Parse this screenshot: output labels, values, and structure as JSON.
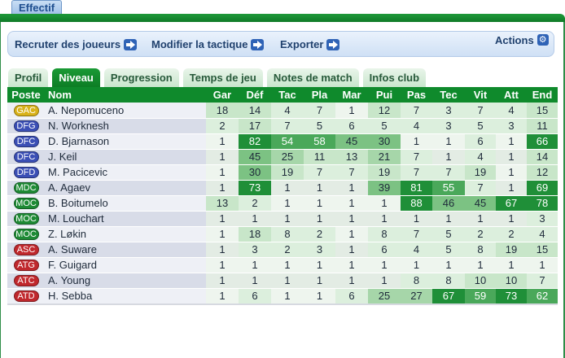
{
  "window_title": "Effectif",
  "action_bar": {
    "recruit_label": "Recruter des joueurs",
    "tactics_label": "Modifier la tactique",
    "export_label": "Exporter",
    "actions_label": "Actions"
  },
  "tabs": [
    {
      "label": "Profil",
      "active": false
    },
    {
      "label": "Niveau",
      "active": true
    },
    {
      "label": "Progression",
      "active": false
    },
    {
      "label": "Temps de jeu",
      "active": false
    },
    {
      "label": "Notes de match",
      "active": false
    },
    {
      "label": "Infos club",
      "active": false
    }
  ],
  "columns": [
    "Poste",
    "Nom",
    "Gar",
    "Déf",
    "Tac",
    "Pla",
    "Mar",
    "Pui",
    "Pas",
    "Tec",
    "Vit",
    "Att",
    "End"
  ],
  "position_colors": {
    "GAC": "#d9b21a",
    "DFG": "#3b4fb5",
    "DFC": "#3b4fb5",
    "DFD": "#3b4fb5",
    "MDC": "#1e8a35",
    "MOC": "#1e8a35",
    "ASC": "#c0282d",
    "ATG": "#c0282d",
    "ATC": "#c0282d",
    "ATD": "#c0282d"
  },
  "players": [
    {
      "pos": "GAC",
      "name": "A. Nepomuceno",
      "stats": [
        18,
        14,
        4,
        7,
        1,
        12,
        7,
        3,
        7,
        4,
        15
      ]
    },
    {
      "pos": "DFG",
      "name": "N. Worknesh",
      "stats": [
        2,
        17,
        7,
        5,
        6,
        5,
        4,
        3,
        5,
        3,
        11
      ]
    },
    {
      "pos": "DFC",
      "name": "D. Bjarnason",
      "stats": [
        1,
        82,
        54,
        58,
        45,
        30,
        1,
        1,
        6,
        1,
        66
      ]
    },
    {
      "pos": "DFC",
      "name": "J. Keil",
      "stats": [
        1,
        45,
        25,
        11,
        13,
        21,
        7,
        1,
        4,
        1,
        14
      ]
    },
    {
      "pos": "DFD",
      "name": "M. Pacicevic",
      "stats": [
        1,
        30,
        19,
        7,
        7,
        19,
        7,
        7,
        19,
        1,
        12
      ]
    },
    {
      "pos": "MDC",
      "name": "A. Agaev",
      "stats": [
        1,
        73,
        1,
        1,
        1,
        39,
        81,
        55,
        7,
        1,
        69
      ]
    },
    {
      "pos": "MOC",
      "name": "B. Boitumelo",
      "stats": [
        13,
        2,
        1,
        1,
        1,
        1,
        88,
        46,
        45,
        67,
        78
      ]
    },
    {
      "pos": "MOC",
      "name": "M. Louchart",
      "stats": [
        1,
        1,
        1,
        1,
        1,
        1,
        1,
        1,
        1,
        1,
        3
      ]
    },
    {
      "pos": "MOC",
      "name": "Z. Løkin",
      "stats": [
        1,
        18,
        8,
        2,
        1,
        8,
        7,
        5,
        2,
        2,
        4
      ]
    },
    {
      "pos": "ASC",
      "name": "A. Suware",
      "stats": [
        1,
        3,
        2,
        3,
        1,
        6,
        4,
        5,
        8,
        19,
        15
      ]
    },
    {
      "pos": "ATG",
      "name": "F. Guigard",
      "stats": [
        1,
        1,
        1,
        1,
        1,
        1,
        1,
        1,
        1,
        1,
        1
      ]
    },
    {
      "pos": "ATC",
      "name": "A. Young",
      "stats": [
        1,
        1,
        1,
        1,
        1,
        1,
        8,
        8,
        10,
        10,
        7
      ]
    },
    {
      "pos": "ATD",
      "name": "H. Sebba",
      "stats": [
        1,
        6,
        1,
        1,
        6,
        25,
        27,
        67,
        59,
        73,
        62
      ]
    }
  ]
}
